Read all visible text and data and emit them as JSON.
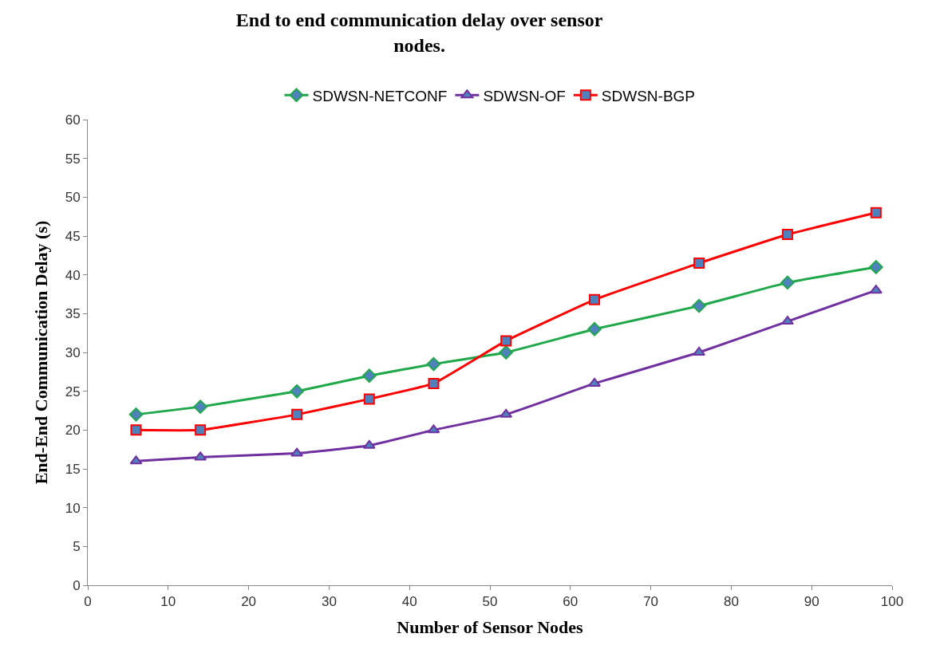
{
  "chart_data": {
    "type": "line",
    "title": "End to end communication delay over sensor\nnodes.",
    "xlabel": "Number of Sensor Nodes",
    "ylabel": "End-End Communication Delay (s)",
    "x": [
      6,
      14,
      26,
      35,
      43,
      52,
      63,
      76,
      87,
      98
    ],
    "series": [
      {
        "name": "SDWSN-NETCONF",
        "color": "#1fa84a",
        "marker": "diamond",
        "values": [
          22,
          23,
          25,
          27,
          28.5,
          30,
          33,
          36,
          39,
          41
        ]
      },
      {
        "name": "SDWSN-OF",
        "color": "#7030a0",
        "marker": "triangle",
        "values": [
          16,
          16.5,
          17,
          18,
          20,
          22,
          26,
          30,
          34,
          38
        ]
      },
      {
        "name": "SDWSN-BGP",
        "color": "#ff0000",
        "marker": "square",
        "values": [
          20,
          20,
          22,
          24,
          26,
          31.5,
          36.8,
          41.5,
          45.2,
          48
        ]
      }
    ],
    "xlim": [
      0,
      100
    ],
    "xticks": [
      0,
      10,
      20,
      30,
      40,
      50,
      60,
      70,
      80,
      90,
      100
    ],
    "ylim": [
      0,
      60
    ],
    "yticks": [
      0,
      5,
      10,
      15,
      20,
      25,
      30,
      35,
      40,
      45,
      50,
      55,
      60
    ],
    "legend": "top",
    "line_style": "solid"
  }
}
